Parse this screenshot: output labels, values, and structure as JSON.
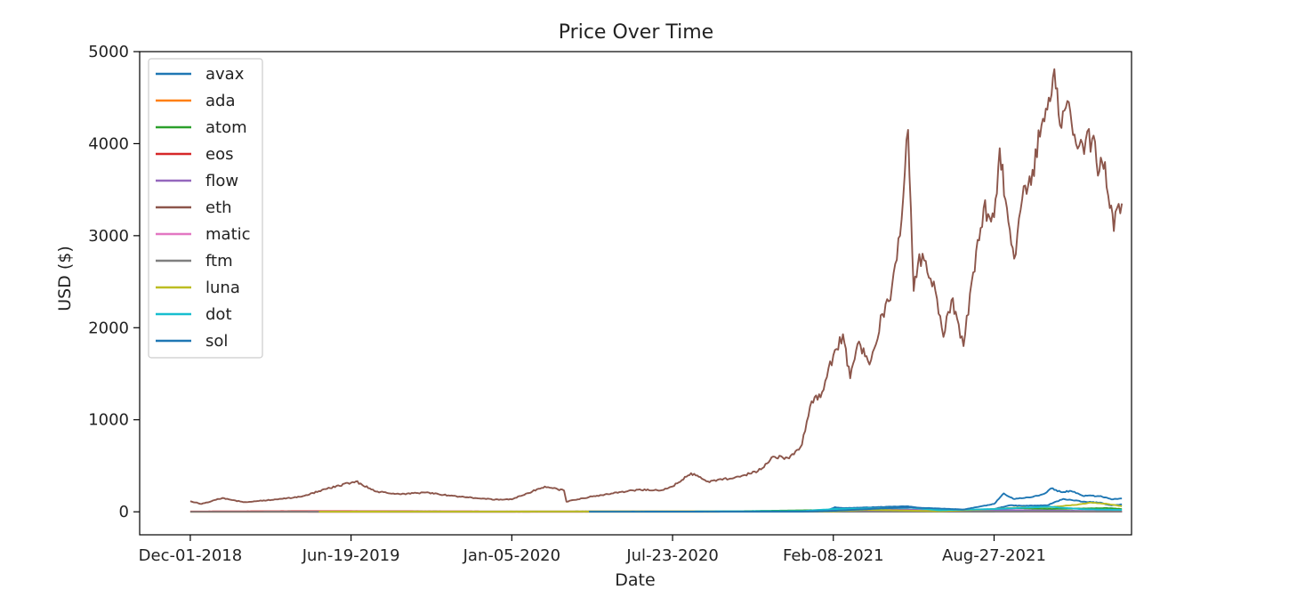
{
  "chart_data": {
    "type": "line",
    "title": "Price Over Time",
    "xlabel": "Date",
    "ylabel": "USD ($)",
    "xlim": [
      "2018-09-29",
      "2022-02-14"
    ],
    "ylim": [
      -250,
      5000
    ],
    "yticks": [
      0,
      1000,
      2000,
      3000,
      4000,
      5000
    ],
    "xticks": [
      {
        "date": "2018-12-01",
        "label": "Dec-01-2018"
      },
      {
        "date": "2019-06-19",
        "label": "Jun-19-2019"
      },
      {
        "date": "2020-01-05",
        "label": "Jan-05-2020"
      },
      {
        "date": "2020-07-23",
        "label": "Jul-23-2020"
      },
      {
        "date": "2021-02-08",
        "label": "Feb-08-2021"
      },
      {
        "date": "2021-08-27",
        "label": "Aug-27-2021"
      }
    ],
    "grid": false,
    "legend_position": "upper-left",
    "series": [
      {
        "name": "avax",
        "color": "#1f77b4",
        "points": [
          [
            "2020-09-22",
            3
          ],
          [
            "2020-12-15",
            3
          ],
          [
            "2021-01-31",
            12
          ],
          [
            "2021-02-10",
            50
          ],
          [
            "2021-02-20",
            40
          ],
          [
            "2021-05-10",
            60
          ],
          [
            "2021-06-20",
            20
          ],
          [
            "2021-07-31",
            15
          ],
          [
            "2021-08-27",
            30
          ],
          [
            "2021-09-15",
            70
          ],
          [
            "2021-10-01",
            65
          ],
          [
            "2021-11-01",
            70
          ],
          [
            "2021-11-21",
            140
          ],
          [
            "2021-12-15",
            110
          ],
          [
            "2022-01-05",
            100
          ],
          [
            "2022-01-20",
            70
          ],
          [
            "2022-02-02",
            80
          ]
        ]
      },
      {
        "name": "ada",
        "color": "#ff7f0e",
        "points": [
          [
            "2018-12-01",
            0.1
          ],
          [
            "2019-06-19",
            0.1
          ],
          [
            "2020-07-23",
            0.1
          ],
          [
            "2021-02-08",
            0.7
          ],
          [
            "2021-06-01",
            1.5
          ],
          [
            "2021-09-01",
            2.8
          ],
          [
            "2021-12-01",
            1.4
          ],
          [
            "2022-02-02",
            1.1
          ]
        ]
      },
      {
        "name": "atom",
        "color": "#2ca02c",
        "points": [
          [
            "2019-04-01",
            5
          ],
          [
            "2020-01-01",
            3
          ],
          [
            "2020-10-01",
            5
          ],
          [
            "2021-02-08",
            20
          ],
          [
            "2021-05-01",
            20
          ],
          [
            "2021-06-20",
            10
          ],
          [
            "2021-08-27",
            25
          ],
          [
            "2021-09-20",
            42
          ],
          [
            "2021-11-01",
            30
          ],
          [
            "2022-01-15",
            40
          ],
          [
            "2022-02-02",
            30
          ]
        ]
      },
      {
        "name": "eos",
        "color": "#d62728",
        "points": [
          [
            "2018-12-01",
            3
          ],
          [
            "2019-05-01",
            7
          ],
          [
            "2020-01-01",
            3
          ],
          [
            "2021-01-01",
            2.5
          ],
          [
            "2021-05-01",
            10
          ],
          [
            "2021-08-27",
            5
          ],
          [
            "2022-02-02",
            2.5
          ]
        ]
      },
      {
        "name": "flow",
        "color": "#9467bd",
        "points": [
          [
            "2021-01-27",
            10
          ],
          [
            "2021-04-05",
            40
          ],
          [
            "2021-06-20",
            10
          ],
          [
            "2021-09-01",
            20
          ],
          [
            "2022-02-02",
            5
          ]
        ]
      },
      {
        "name": "eth",
        "color": "#8c564b",
        "points": [
          [
            "2018-12-01",
            115
          ],
          [
            "2018-12-15",
            85
          ],
          [
            "2019-01-10",
            150
          ],
          [
            "2019-02-05",
            105
          ],
          [
            "2019-03-20",
            135
          ],
          [
            "2019-04-20",
            170
          ],
          [
            "2019-05-20",
            250
          ],
          [
            "2019-06-25",
            330
          ],
          [
            "2019-07-20",
            220
          ],
          [
            "2019-08-20",
            190
          ],
          [
            "2019-09-20",
            210
          ],
          [
            "2019-10-20",
            175
          ],
          [
            "2019-11-20",
            150
          ],
          [
            "2019-12-20",
            130
          ],
          [
            "2020-01-05",
            135
          ],
          [
            "2020-02-15",
            275
          ],
          [
            "2020-03-10",
            230
          ],
          [
            "2020-03-13",
            110
          ],
          [
            "2020-04-10",
            160
          ],
          [
            "2020-05-10",
            200
          ],
          [
            "2020-06-10",
            240
          ],
          [
            "2020-07-10",
            235
          ],
          [
            "2020-07-23",
            275
          ],
          [
            "2020-08-15",
            420
          ],
          [
            "2020-09-05",
            330
          ],
          [
            "2020-10-15",
            380
          ],
          [
            "2020-11-10",
            460
          ],
          [
            "2020-11-25",
            600
          ],
          [
            "2020-12-15",
            580
          ],
          [
            "2020-12-31",
            730
          ],
          [
            "2021-01-12",
            1200
          ],
          [
            "2021-01-25",
            1300
          ],
          [
            "2021-02-08",
            1700
          ],
          [
            "2021-02-20",
            1930
          ],
          [
            "2021-03-01",
            1450
          ],
          [
            "2021-03-12",
            1850
          ],
          [
            "2021-03-25",
            1600
          ],
          [
            "2021-04-10",
            2150
          ],
          [
            "2021-04-20",
            2300
          ],
          [
            "2021-05-02",
            3000
          ],
          [
            "2021-05-12",
            4150
          ],
          [
            "2021-05-19",
            2400
          ],
          [
            "2021-05-26",
            2800
          ],
          [
            "2021-06-05",
            2600
          ],
          [
            "2021-06-15",
            2400
          ],
          [
            "2021-06-25",
            1900
          ],
          [
            "2021-07-05",
            2300
          ],
          [
            "2021-07-12",
            2100
          ],
          [
            "2021-07-20",
            1800
          ],
          [
            "2021-08-01",
            2600
          ],
          [
            "2021-08-14",
            3300
          ],
          [
            "2021-08-27",
            3200
          ],
          [
            "2021-09-03",
            3950
          ],
          [
            "2021-09-12",
            3300
          ],
          [
            "2021-09-21",
            2750
          ],
          [
            "2021-10-01",
            3400
          ],
          [
            "2021-10-12",
            3550
          ],
          [
            "2021-10-25",
            4200
          ],
          [
            "2021-11-03",
            4500
          ],
          [
            "2021-11-10",
            4810
          ],
          [
            "2021-11-17",
            4200
          ],
          [
            "2021-11-28",
            4450
          ],
          [
            "2021-12-05",
            4100
          ],
          [
            "2021-12-15",
            4000
          ],
          [
            "2021-12-27",
            4050
          ],
          [
            "2022-01-05",
            3700
          ],
          [
            "2022-01-12",
            3800
          ],
          [
            "2022-01-18",
            3300
          ],
          [
            "2022-01-23",
            3050
          ],
          [
            "2022-01-27",
            3300
          ],
          [
            "2022-02-02",
            3350
          ]
        ]
      },
      {
        "name": "matic",
        "color": "#e377c2",
        "points": [
          [
            "2019-04-26",
            0.01
          ],
          [
            "2021-02-08",
            0.5
          ],
          [
            "2021-05-18",
            2.3
          ],
          [
            "2021-08-27",
            1.5
          ],
          [
            "2021-12-27",
            2.6
          ],
          [
            "2022-02-02",
            1.8
          ]
        ]
      },
      {
        "name": "ftm",
        "color": "#7f7f7f",
        "points": [
          [
            "2018-12-01",
            0.02
          ],
          [
            "2021-02-08",
            0.5
          ],
          [
            "2021-08-27",
            1.5
          ],
          [
            "2021-10-28",
            3.4
          ],
          [
            "2022-02-02",
            2.3
          ]
        ]
      },
      {
        "name": "luna",
        "color": "#bcbd22",
        "points": [
          [
            "2019-05-10",
            1
          ],
          [
            "2021-02-08",
            5
          ],
          [
            "2021-03-20",
            22
          ],
          [
            "2021-06-20",
            6
          ],
          [
            "2021-08-27",
            30
          ],
          [
            "2021-09-25",
            45
          ],
          [
            "2021-11-05",
            50
          ],
          [
            "2021-12-10",
            80
          ],
          [
            "2021-12-26",
            100
          ],
          [
            "2022-01-15",
            85
          ],
          [
            "2022-02-02",
            60
          ]
        ]
      },
      {
        "name": "dot",
        "color": "#17becf",
        "points": [
          [
            "2020-08-20",
            4
          ],
          [
            "2021-01-01",
            8
          ],
          [
            "2021-02-08",
            30
          ],
          [
            "2021-05-15",
            45
          ],
          [
            "2021-06-20",
            17
          ],
          [
            "2021-08-27",
            30
          ],
          [
            "2021-11-04",
            55
          ],
          [
            "2021-12-15",
            28
          ],
          [
            "2022-02-02",
            20
          ]
        ]
      },
      {
        "name": "sol",
        "color": "#1f77b4",
        "points": [
          [
            "2020-04-10",
            1
          ],
          [
            "2020-12-31",
            2
          ],
          [
            "2021-02-08",
            10
          ],
          [
            "2021-05-10",
            50
          ],
          [
            "2021-07-20",
            25
          ],
          [
            "2021-08-27",
            85
          ],
          [
            "2021-09-08",
            200
          ],
          [
            "2021-09-20",
            140
          ],
          [
            "2021-10-10",
            155
          ],
          [
            "2021-10-28",
            195
          ],
          [
            "2021-11-06",
            255
          ],
          [
            "2021-11-18",
            215
          ],
          [
            "2021-12-01",
            225
          ],
          [
            "2021-12-15",
            175
          ],
          [
            "2022-01-05",
            170
          ],
          [
            "2022-01-20",
            135
          ],
          [
            "2022-02-02",
            145
          ]
        ]
      }
    ]
  }
}
